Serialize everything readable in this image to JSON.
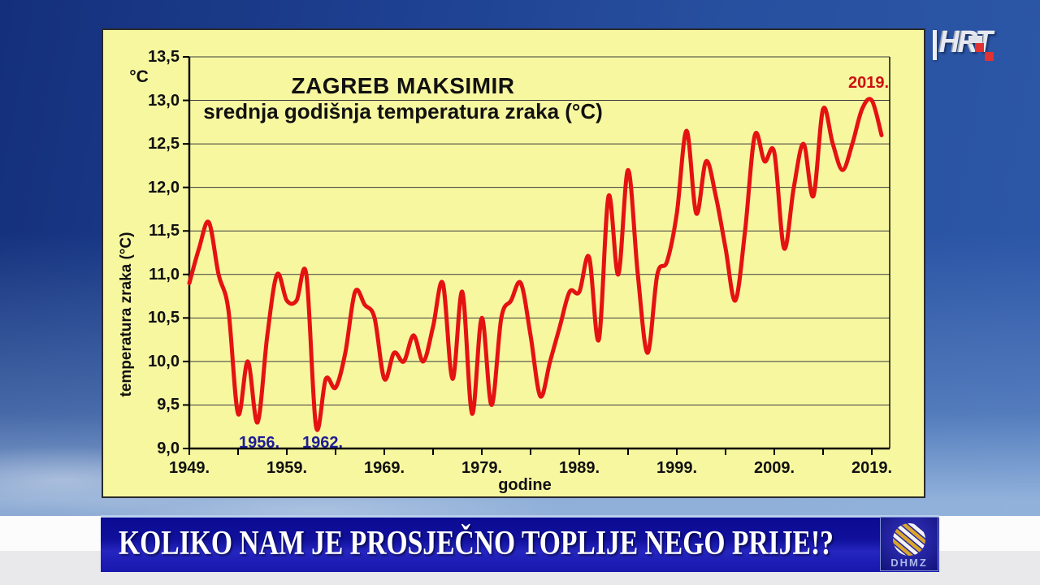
{
  "broadcaster": {
    "logo_text": "HRT"
  },
  "chart": {
    "title": "ZAGREB MAKSIMIR",
    "subtitle": "srednja godišnja temperatura zraka (°C)",
    "y_axis": {
      "unit_label": "°C",
      "axis_label": "temperatura zraka (°C)",
      "tick_labels": [
        "13,5",
        "13,0",
        "12,5",
        "12,0",
        "11,5",
        "11,0",
        "10,5",
        "10,0",
        "9,5",
        "9,0"
      ]
    },
    "x_axis": {
      "axis_label": "godine",
      "tick_labels": [
        "1949.",
        "1959.",
        "1969.",
        "1979.",
        "1989.",
        "1999.",
        "2009.",
        "2019."
      ]
    }
  },
  "chart_data": {
    "type": "line",
    "title": "ZAGREB MAKSIMIR",
    "subtitle": "srednja godišnja temperatura zraka (°C)",
    "xlabel": "godine",
    "ylabel": "temperatura zraka (°C)",
    "ylim": [
      9.0,
      13.5
    ],
    "y_tick_step": 0.5,
    "xlim": [
      1949,
      2020.75
    ],
    "grid": true,
    "x": [
      1949,
      1950,
      1951,
      1952,
      1953,
      1954,
      1955,
      1956,
      1957,
      1958,
      1959,
      1960,
      1961,
      1962,
      1963,
      1964,
      1965,
      1966,
      1967,
      1968,
      1969,
      1970,
      1971,
      1972,
      1973,
      1974,
      1975,
      1976,
      1977,
      1978,
      1979,
      1980,
      1981,
      1982,
      1983,
      1984,
      1985,
      1986,
      1987,
      1988,
      1989,
      1990,
      1991,
      1992,
      1993,
      1994,
      1995,
      1996,
      1997,
      1998,
      1999,
      2000,
      2001,
      2002,
      2003,
      2004,
      2005,
      2006,
      2007,
      2008,
      2009,
      2010,
      2011,
      2012,
      2013,
      2014,
      2015,
      2016,
      2017,
      2018,
      2019,
      2020
    ],
    "series": [
      {
        "name": "srednja godišnja temperatura zraka (°C)",
        "color": "#e51212",
        "values": [
          10.9,
          11.3,
          11.6,
          11.0,
          10.6,
          9.4,
          10.0,
          9.3,
          10.3,
          11.0,
          10.7,
          10.7,
          11.0,
          9.25,
          9.8,
          9.7,
          10.1,
          10.8,
          10.65,
          10.5,
          9.8,
          10.1,
          10.0,
          10.3,
          10.0,
          10.4,
          10.9,
          9.8,
          10.8,
          9.4,
          10.5,
          9.5,
          10.5,
          10.7,
          10.9,
          10.3,
          9.6,
          10.0,
          10.4,
          10.8,
          10.8,
          11.2,
          10.25,
          11.9,
          11.0,
          12.2,
          11.0,
          10.1,
          11.0,
          11.15,
          11.7,
          12.65,
          11.7,
          12.3,
          11.9,
          11.3,
          10.7,
          11.5,
          12.6,
          12.3,
          12.4,
          11.3,
          12.0,
          12.5,
          11.9,
          12.9,
          12.5,
          12.2,
          12.5,
          12.9,
          13.0,
          12.6
        ]
      }
    ],
    "annotations": [
      {
        "label": "1956.",
        "year": 1956,
        "color": "#1d1d96",
        "position": "below",
        "dx": 2
      },
      {
        "label": "1962.",
        "year": 1962,
        "color": "#1d1d96",
        "position": "below",
        "dx": 8
      },
      {
        "label": "2019.",
        "year": 2019,
        "color": "#cd1111",
        "position": "above",
        "dx": -4
      }
    ]
  },
  "caption_bar": {
    "text": "KOLIKO NAM JE PROSJEČNO TOPLIJE NEGO PRIJE!?"
  },
  "dhmz_logo": {
    "text": "DHMZ"
  }
}
